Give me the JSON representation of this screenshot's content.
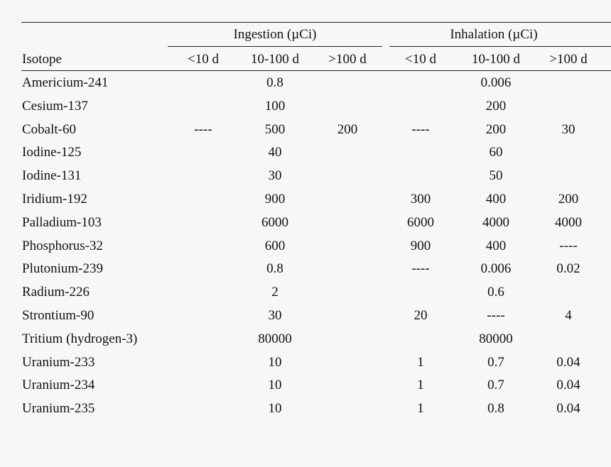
{
  "table": {
    "groups": [
      {
        "label": "Ingestion (µCi)"
      },
      {
        "label": "Inhalation (µCi)"
      }
    ],
    "row_header_label": "Isotope",
    "columns": [
      "<10 d",
      "10-100 d",
      ">100 d",
      "<10 d",
      "10-100 d",
      ">100 d"
    ],
    "rows": [
      {
        "isotope": "Americium-241",
        "cells": [
          "",
          "0.8",
          "",
          "",
          "0.006",
          ""
        ]
      },
      {
        "isotope": "Cesium-137",
        "cells": [
          "",
          "100",
          "",
          "",
          "200",
          ""
        ]
      },
      {
        "isotope": "Cobalt-60",
        "cells": [
          "----",
          "500",
          "200",
          "----",
          "200",
          "30"
        ]
      },
      {
        "isotope": "Iodine-125",
        "cells": [
          "",
          "40",
          "",
          "",
          "60",
          ""
        ]
      },
      {
        "isotope": "Iodine-131",
        "cells": [
          "",
          "30",
          "",
          "",
          "50",
          ""
        ]
      },
      {
        "isotope": "Iridium-192",
        "cells": [
          "",
          "900",
          "",
          "300",
          "400",
          "200"
        ]
      },
      {
        "isotope": "Palladium-103",
        "cells": [
          "",
          "6000",
          "",
          "6000",
          "4000",
          "4000"
        ]
      },
      {
        "isotope": "Phosphorus-32",
        "cells": [
          "",
          "600",
          "",
          "900",
          "400",
          "----"
        ]
      },
      {
        "isotope": "Plutonium-239",
        "cells": [
          "",
          "0.8",
          "",
          "----",
          "0.006",
          "0.02"
        ]
      },
      {
        "isotope": "Radium-226",
        "cells": [
          "",
          "2",
          "",
          "",
          "0.6",
          ""
        ]
      },
      {
        "isotope": "Strontium-90",
        "cells": [
          "",
          "30",
          "",
          "20",
          "----",
          "4"
        ]
      },
      {
        "isotope": "Tritium (hydrogen-3)",
        "cells": [
          "",
          "80000",
          "",
          "",
          "80000",
          ""
        ]
      },
      {
        "isotope": "Uranium-233",
        "cells": [
          "",
          "10",
          "",
          "1",
          "0.7",
          "0.04"
        ]
      },
      {
        "isotope": "Uranium-234",
        "cells": [
          "",
          "10",
          "",
          "1",
          "0.7",
          "0.04"
        ]
      },
      {
        "isotope": "Uranium-235",
        "cells": [
          "",
          "10",
          "",
          "1",
          "0.8",
          "0.04"
        ]
      }
    ]
  }
}
